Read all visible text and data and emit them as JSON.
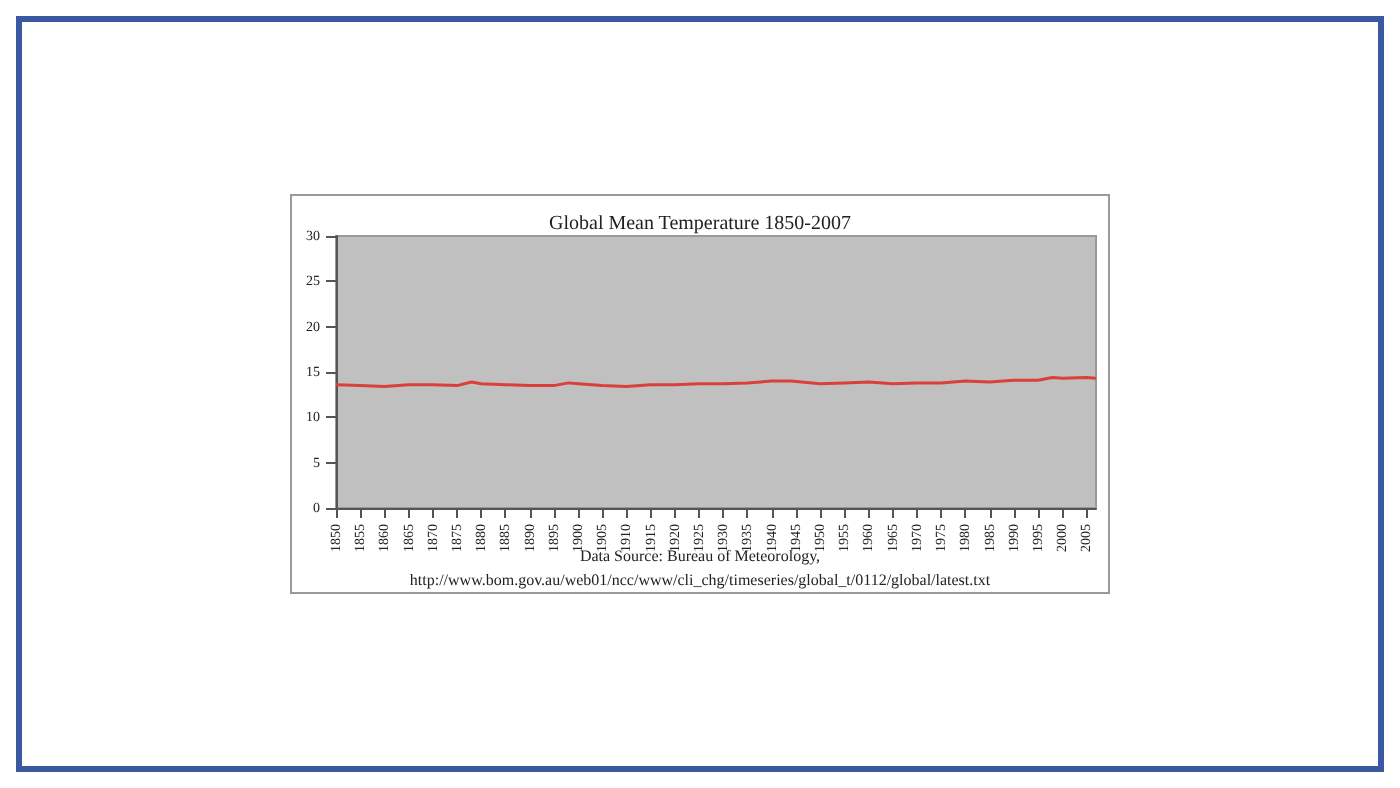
{
  "chart_data": {
    "type": "line",
    "title": "Global Mean Temperature 1850-2007",
    "annotations": [
      "Data Source: Bureau of Meteorology,",
      "http://www.bom.gov.au/web01/ncc/www/cli_chg/timeseries/global_t/0112/global/latest.txt"
    ],
    "x": [
      1850,
      1855,
      1860,
      1865,
      1870,
      1875,
      1878,
      1880,
      1885,
      1890,
      1895,
      1898,
      1900,
      1905,
      1910,
      1915,
      1920,
      1925,
      1930,
      1935,
      1940,
      1944,
      1950,
      1955,
      1960,
      1965,
      1970,
      1975,
      1980,
      1985,
      1990,
      1995,
      1998,
      2000,
      2005,
      2007
    ],
    "series": [
      {
        "color": "#d9403a",
        "values": [
          13.6,
          13.5,
          13.4,
          13.6,
          13.6,
          13.5,
          13.9,
          13.7,
          13.6,
          13.5,
          13.5,
          13.8,
          13.7,
          13.5,
          13.4,
          13.6,
          13.6,
          13.7,
          13.7,
          13.8,
          14.0,
          14.0,
          13.7,
          13.8,
          13.9,
          13.7,
          13.8,
          13.8,
          14.0,
          13.9,
          14.1,
          14.1,
          14.4,
          14.3,
          14.4,
          14.3
        ]
      }
    ],
    "xlim": [
      1850,
      2007
    ],
    "xticks": [
      1850,
      1855,
      1860,
      1865,
      1870,
      1875,
      1880,
      1885,
      1890,
      1895,
      1900,
      1905,
      1910,
      1915,
      1920,
      1925,
      1930,
      1935,
      1940,
      1945,
      1950,
      1955,
      1960,
      1965,
      1970,
      1975,
      1980,
      1985,
      1990,
      1995,
      2000,
      2005
    ],
    "ylim": [
      0,
      30
    ],
    "yticks": [
      0,
      5,
      10,
      15,
      20,
      25,
      30
    ],
    "grid": false,
    "marker": "none",
    "line_style": "solid"
  }
}
